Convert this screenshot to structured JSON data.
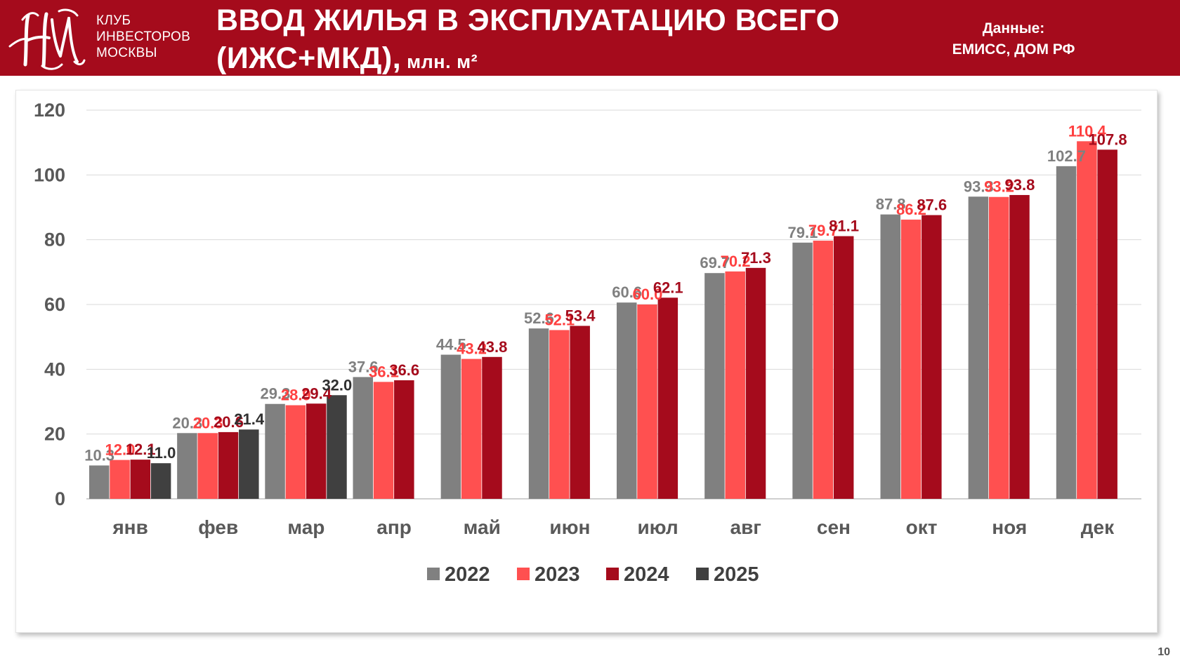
{
  "header": {
    "logo_lines": [
      "КЛУБ",
      "ИНВЕСТОРОВ",
      "МОСКВЫ"
    ],
    "title_line1": "ВВОД ЖИЛЬЯ В ЭКСПЛУАТАЦИЮ ВСЕГО",
    "title_line2": "(ИЖС+МКД),",
    "title_units": " млн. м²",
    "source_label": "Данные:",
    "source_value": "ЕМИСС, ДОМ РФ",
    "brand_color": "#a50b1c"
  },
  "page_number": "10",
  "chart_data": {
    "type": "bar",
    "categories": [
      "янв",
      "фев",
      "мар",
      "апр",
      "май",
      "июн",
      "июл",
      "авг",
      "сен",
      "окт",
      "ноя",
      "дек"
    ],
    "series": [
      {
        "name": "2022",
        "color": "#808080",
        "label_color": "#808080",
        "values": [
          10.3,
          20.3,
          29.3,
          37.6,
          44.5,
          52.6,
          60.6,
          69.7,
          79.1,
          87.8,
          93.3,
          102.7
        ]
      },
      {
        "name": "2023",
        "color": "#ff5050",
        "label_color": "#ff4040",
        "values": [
          12.0,
          20.3,
          28.9,
          36.1,
          43.2,
          52.1,
          60.0,
          70.2,
          79.7,
          86.2,
          93.2,
          110.4
        ]
      },
      {
        "name": "2024",
        "color": "#a50b1c",
        "label_color": "#a50b1c",
        "values": [
          12.1,
          20.6,
          29.4,
          36.6,
          43.8,
          53.4,
          62.1,
          71.3,
          81.1,
          87.6,
          93.8,
          107.8
        ]
      },
      {
        "name": "2025",
        "color": "#404040",
        "label_color": "#303030",
        "values": [
          11.0,
          21.4,
          32.0,
          null,
          null,
          null,
          null,
          null,
          null,
          null,
          null,
          null
        ]
      }
    ],
    "labels": [
      [
        "10.3",
        "20.3",
        "29.3",
        "37.6",
        "44.5",
        "52.6",
        "60.6",
        "69.7",
        "79.1",
        "87.8",
        "93.3",
        "102.7"
      ],
      [
        "12.0",
        "20.3",
        "28.9",
        "36.1",
        "43.2",
        "52.1",
        "60.0",
        "70.2",
        "79.7",
        "86.2",
        "93.2",
        "110.4"
      ],
      [
        "12.1",
        "20.6",
        "29.4",
        "36.6",
        "43.8",
        "53.4",
        "62.1",
        "71.3",
        "81.1",
        "87.6",
        "93.8",
        "107.8"
      ],
      [
        "11.0",
        "21.4",
        "32.0",
        null,
        null,
        null,
        null,
        null,
        null,
        null,
        null,
        null
      ]
    ],
    "ylim": [
      0,
      120
    ],
    "yticks": [
      "0",
      "20",
      "40",
      "60",
      "80",
      "100",
      "120"
    ],
    "ytick_values": [
      0,
      20,
      40,
      60,
      80,
      100,
      120
    ],
    "grid": true,
    "legend_position": "bottom",
    "title": "",
    "xlabel": "",
    "ylabel": ""
  }
}
